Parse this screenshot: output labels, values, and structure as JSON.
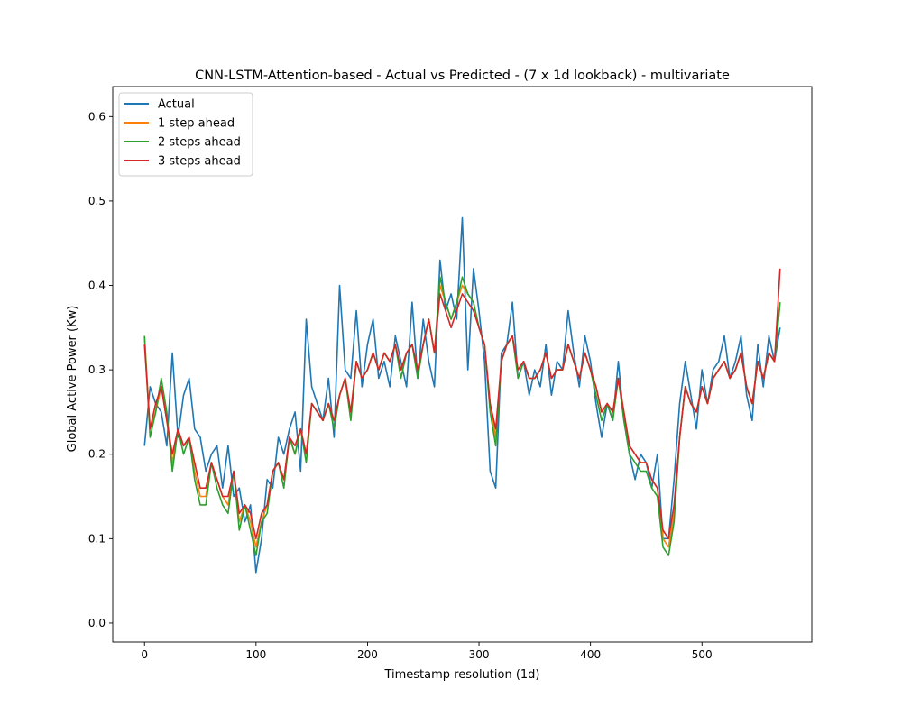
{
  "chart_data": {
    "type": "line",
    "title": "CNN-LSTM-Attention-based - Actual vs Predicted - (7 x 1d lookback) - multivariate",
    "xlabel": "Timestamp resolution (1d)",
    "ylabel": "Global Active Power (Kw)",
    "xlim": [
      -28.5,
      598.5
    ],
    "ylim": [
      -0.0225,
      0.6356
    ],
    "xticks": [
      0,
      100,
      200,
      300,
      400,
      500
    ],
    "yticks": [
      0.0,
      0.1,
      0.2,
      0.3,
      0.4,
      0.5,
      0.6
    ],
    "ytick_labels": [
      "0.0",
      "0.1",
      "0.2",
      "0.3",
      "0.4",
      "0.5",
      "0.6"
    ],
    "legend_position": "upper-left",
    "grid": false,
    "series": [
      {
        "name": "Actual",
        "color": "#1f77b4",
        "x": [
          0,
          5,
          10,
          15,
          20,
          25,
          30,
          35,
          40,
          45,
          50,
          55,
          60,
          65,
          70,
          75,
          80,
          85,
          90,
          95,
          100,
          105,
          110,
          115,
          120,
          125,
          130,
          135,
          140,
          145,
          150,
          155,
          160,
          165,
          170,
          175,
          180,
          185,
          190,
          195,
          200,
          205,
          210,
          215,
          220,
          225,
          230,
          235,
          240,
          245,
          250,
          255,
          260,
          265,
          270,
          275,
          280,
          285,
          290,
          295,
          300,
          305,
          310,
          315,
          320,
          325,
          330,
          335,
          340,
          345,
          350,
          355,
          360,
          365,
          370,
          375,
          380,
          385,
          390,
          395,
          400,
          405,
          410,
          415,
          420,
          425,
          430,
          435,
          440,
          445,
          450,
          455,
          460,
          465,
          470,
          475,
          480,
          485,
          490,
          495,
          500,
          505,
          510,
          515,
          520,
          525,
          530,
          535,
          540,
          545,
          550,
          555,
          560,
          565,
          570
        ],
        "values": [
          0.21,
          0.28,
          0.26,
          0.25,
          0.21,
          0.32,
          0.22,
          0.27,
          0.29,
          0.23,
          0.22,
          0.18,
          0.2,
          0.21,
          0.16,
          0.21,
          0.15,
          0.16,
          0.12,
          0.14,
          0.06,
          0.1,
          0.17,
          0.16,
          0.22,
          0.2,
          0.23,
          0.25,
          0.18,
          0.36,
          0.28,
          0.26,
          0.24,
          0.29,
          0.22,
          0.4,
          0.3,
          0.29,
          0.37,
          0.28,
          0.33,
          0.36,
          0.29,
          0.31,
          0.28,
          0.34,
          0.31,
          0.28,
          0.38,
          0.29,
          0.36,
          0.31,
          0.28,
          0.43,
          0.37,
          0.39,
          0.36,
          0.48,
          0.3,
          0.42,
          0.37,
          0.31,
          0.18,
          0.16,
          0.32,
          0.33,
          0.38,
          0.29,
          0.31,
          0.27,
          0.3,
          0.28,
          0.33,
          0.27,
          0.31,
          0.3,
          0.37,
          0.32,
          0.28,
          0.34,
          0.31,
          0.26,
          0.22,
          0.26,
          0.24,
          0.31,
          0.24,
          0.2,
          0.17,
          0.2,
          0.19,
          0.16,
          0.2,
          0.1,
          0.1,
          0.17,
          0.26,
          0.31,
          0.27,
          0.23,
          0.3,
          0.26,
          0.3,
          0.31,
          0.34,
          0.29,
          0.31,
          0.34,
          0.27,
          0.24,
          0.33,
          0.28,
          0.34,
          0.31,
          0.35
        ]
      },
      {
        "name": "1 step ahead",
        "color": "#ff7f0e",
        "x": [
          0,
          5,
          10,
          15,
          20,
          25,
          30,
          35,
          40,
          45,
          50,
          55,
          60,
          65,
          70,
          75,
          80,
          85,
          90,
          95,
          100,
          105,
          110,
          115,
          120,
          125,
          130,
          135,
          140,
          145,
          150,
          155,
          160,
          165,
          170,
          175,
          180,
          185,
          190,
          195,
          200,
          205,
          210,
          215,
          220,
          225,
          230,
          235,
          240,
          245,
          250,
          255,
          260,
          265,
          270,
          275,
          280,
          285,
          290,
          295,
          300,
          305,
          310,
          315,
          320,
          325,
          330,
          335,
          340,
          345,
          350,
          355,
          360,
          365,
          370,
          375,
          380,
          385,
          390,
          395,
          400,
          405,
          410,
          415,
          420,
          425,
          430,
          435,
          440,
          445,
          450,
          455,
          460,
          465,
          470,
          475,
          480,
          485,
          490,
          495,
          500,
          505,
          510,
          515,
          520,
          525,
          530,
          535,
          540,
          545,
          550,
          555,
          560,
          565,
          570
        ],
        "values": [
          0.34,
          0.23,
          0.25,
          0.28,
          0.24,
          0.19,
          0.23,
          0.21,
          0.22,
          0.18,
          0.15,
          0.15,
          0.19,
          0.17,
          0.15,
          0.14,
          0.18,
          0.12,
          0.14,
          0.12,
          0.09,
          0.12,
          0.14,
          0.18,
          0.19,
          0.17,
          0.22,
          0.2,
          0.23,
          0.2,
          0.26,
          0.25,
          0.24,
          0.26,
          0.24,
          0.27,
          0.29,
          0.25,
          0.31,
          0.29,
          0.3,
          0.32,
          0.3,
          0.32,
          0.31,
          0.33,
          0.3,
          0.32,
          0.33,
          0.3,
          0.33,
          0.36,
          0.32,
          0.4,
          0.38,
          0.36,
          0.38,
          0.4,
          0.39,
          0.38,
          0.35,
          0.33,
          0.26,
          0.22,
          0.31,
          0.33,
          0.34,
          0.3,
          0.31,
          0.29,
          0.29,
          0.3,
          0.32,
          0.29,
          0.3,
          0.3,
          0.33,
          0.31,
          0.29,
          0.32,
          0.3,
          0.28,
          0.25,
          0.26,
          0.25,
          0.29,
          0.25,
          0.21,
          0.2,
          0.19,
          0.19,
          0.17,
          0.16,
          0.1,
          0.09,
          0.13,
          0.22,
          0.28,
          0.26,
          0.25,
          0.28,
          0.26,
          0.29,
          0.3,
          0.31,
          0.29,
          0.3,
          0.32,
          0.28,
          0.26,
          0.31,
          0.29,
          0.32,
          0.31,
          0.38
        ]
      },
      {
        "name": "2 steps ahead",
        "color": "#2ca02c",
        "x": [
          0,
          5,
          10,
          15,
          20,
          25,
          30,
          35,
          40,
          45,
          50,
          55,
          60,
          65,
          70,
          75,
          80,
          85,
          90,
          95,
          100,
          105,
          110,
          115,
          120,
          125,
          130,
          135,
          140,
          145,
          150,
          155,
          160,
          165,
          170,
          175,
          180,
          185,
          190,
          195,
          200,
          205,
          210,
          215,
          220,
          225,
          230,
          235,
          240,
          245,
          250,
          255,
          260,
          265,
          270,
          275,
          280,
          285,
          290,
          295,
          300,
          305,
          310,
          315,
          320,
          325,
          330,
          335,
          340,
          345,
          350,
          355,
          360,
          365,
          370,
          375,
          380,
          385,
          390,
          395,
          400,
          405,
          410,
          415,
          420,
          425,
          430,
          435,
          440,
          445,
          450,
          455,
          460,
          465,
          470,
          475,
          480,
          485,
          490,
          495,
          500,
          505,
          510,
          515,
          520,
          525,
          530,
          535,
          540,
          545,
          550,
          555,
          560,
          565,
          570
        ],
        "values": [
          0.34,
          0.22,
          0.25,
          0.29,
          0.25,
          0.18,
          0.23,
          0.2,
          0.22,
          0.17,
          0.14,
          0.14,
          0.19,
          0.16,
          0.14,
          0.13,
          0.18,
          0.11,
          0.14,
          0.11,
          0.08,
          0.12,
          0.13,
          0.18,
          0.19,
          0.16,
          0.22,
          0.2,
          0.23,
          0.19,
          0.26,
          0.25,
          0.24,
          0.26,
          0.23,
          0.27,
          0.29,
          0.24,
          0.31,
          0.29,
          0.3,
          0.32,
          0.3,
          0.32,
          0.31,
          0.33,
          0.29,
          0.32,
          0.33,
          0.29,
          0.33,
          0.36,
          0.32,
          0.41,
          0.38,
          0.36,
          0.38,
          0.41,
          0.39,
          0.38,
          0.35,
          0.33,
          0.25,
          0.21,
          0.31,
          0.33,
          0.34,
          0.29,
          0.31,
          0.29,
          0.29,
          0.3,
          0.32,
          0.29,
          0.3,
          0.3,
          0.33,
          0.31,
          0.29,
          0.32,
          0.3,
          0.27,
          0.24,
          0.26,
          0.24,
          0.29,
          0.24,
          0.2,
          0.19,
          0.18,
          0.18,
          0.16,
          0.15,
          0.09,
          0.08,
          0.12,
          0.22,
          0.28,
          0.26,
          0.25,
          0.28,
          0.26,
          0.29,
          0.3,
          0.31,
          0.29,
          0.3,
          0.32,
          0.28,
          0.26,
          0.31,
          0.29,
          0.32,
          0.31,
          0.38
        ]
      },
      {
        "name": "3 steps ahead",
        "color": "#d62728",
        "x": [
          0,
          5,
          10,
          15,
          20,
          25,
          30,
          35,
          40,
          45,
          50,
          55,
          60,
          65,
          70,
          75,
          80,
          85,
          90,
          95,
          100,
          105,
          110,
          115,
          120,
          125,
          130,
          135,
          140,
          145,
          150,
          155,
          160,
          165,
          170,
          175,
          180,
          185,
          190,
          195,
          200,
          205,
          210,
          215,
          220,
          225,
          230,
          235,
          240,
          245,
          250,
          255,
          260,
          265,
          270,
          275,
          280,
          285,
          290,
          295,
          300,
          305,
          310,
          315,
          320,
          325,
          330,
          335,
          340,
          345,
          350,
          355,
          360,
          365,
          370,
          375,
          380,
          385,
          390,
          395,
          400,
          405,
          410,
          415,
          420,
          425,
          430,
          435,
          440,
          445,
          450,
          455,
          460,
          465,
          470,
          475,
          480,
          485,
          490,
          495,
          500,
          505,
          510,
          515,
          520,
          525,
          530,
          535,
          540,
          545,
          550,
          555,
          560,
          565,
          570
        ],
        "values": [
          0.33,
          0.23,
          0.26,
          0.28,
          0.24,
          0.2,
          0.23,
          0.21,
          0.22,
          0.19,
          0.16,
          0.16,
          0.19,
          0.17,
          0.15,
          0.15,
          0.18,
          0.13,
          0.14,
          0.13,
          0.1,
          0.13,
          0.14,
          0.18,
          0.19,
          0.17,
          0.22,
          0.21,
          0.23,
          0.2,
          0.26,
          0.25,
          0.24,
          0.26,
          0.24,
          0.27,
          0.29,
          0.25,
          0.31,
          0.29,
          0.3,
          0.32,
          0.3,
          0.32,
          0.31,
          0.33,
          0.3,
          0.32,
          0.33,
          0.3,
          0.33,
          0.36,
          0.32,
          0.39,
          0.37,
          0.35,
          0.37,
          0.39,
          0.38,
          0.37,
          0.35,
          0.33,
          0.26,
          0.23,
          0.31,
          0.33,
          0.34,
          0.3,
          0.31,
          0.29,
          0.29,
          0.3,
          0.32,
          0.29,
          0.3,
          0.3,
          0.33,
          0.31,
          0.29,
          0.32,
          0.3,
          0.28,
          0.25,
          0.26,
          0.25,
          0.29,
          0.25,
          0.21,
          0.2,
          0.19,
          0.19,
          0.17,
          0.16,
          0.11,
          0.1,
          0.14,
          0.22,
          0.28,
          0.26,
          0.25,
          0.28,
          0.26,
          0.29,
          0.3,
          0.31,
          0.29,
          0.3,
          0.32,
          0.28,
          0.26,
          0.31,
          0.29,
          0.32,
          0.31,
          0.42
        ]
      }
    ]
  }
}
